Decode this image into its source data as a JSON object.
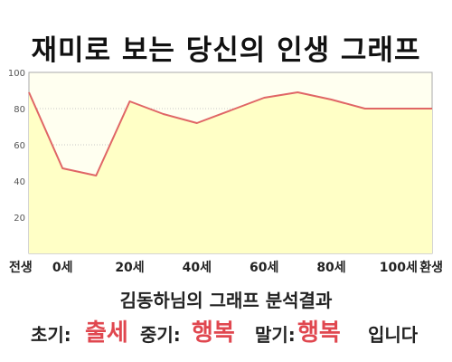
{
  "chart_data": {
    "type": "area",
    "title": "재미로 보는 당신의 인생 그래프",
    "categories": [
      "전생",
      "0세",
      "20세",
      "40세",
      "60세",
      "80세",
      "100세",
      "환생"
    ],
    "x": [
      -10,
      0,
      10,
      20,
      30,
      40,
      50,
      60,
      70,
      80,
      90,
      100,
      110
    ],
    "values": [
      89,
      47,
      43,
      84,
      77,
      72,
      79,
      86,
      89,
      85,
      80,
      80,
      80
    ],
    "y_ticks": [
      20,
      40,
      60,
      80,
      100
    ],
    "ylim": [
      0,
      100
    ],
    "grid": true,
    "colors": {
      "line": "#e06666",
      "fill": "#ffffc6",
      "plot_bg": "#fffff0",
      "grid": "#c8c8c8"
    }
  },
  "result": {
    "heading": "김동하님의 그래프 분석결과",
    "early_label": "초기:",
    "early_value": "출세",
    "mid_label": "중기:",
    "mid_value": "행복",
    "late_label": "말기:",
    "late_value": "행복",
    "suffix": "입니다"
  }
}
